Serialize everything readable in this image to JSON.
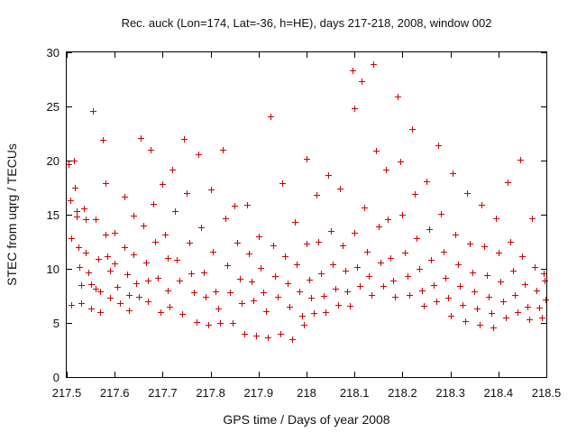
{
  "chart_data": {
    "type": "scatter",
    "title": "Rec. auck (Lon=174, Lat=-36, h=HE), days 217-218, 2008, window 002",
    "xlabel": "GPS time / Days of year 2008",
    "ylabel": "STEC from uqrg / TECUs",
    "xlim": [
      217.5,
      218.5
    ],
    "ylim": [
      0,
      30
    ],
    "xticks": [
      217.5,
      217.6,
      217.7,
      217.8,
      217.9,
      218.0,
      218.1,
      218.2,
      218.3,
      218.4,
      218.5
    ],
    "xtick_labels": [
      "217.5",
      "217.6",
      "217.7",
      "217.8",
      "217.9",
      "218",
      "218.1",
      "218.2",
      "218.3",
      "218.4",
      "218.5"
    ],
    "yticks": [
      0,
      5,
      10,
      15,
      20,
      25,
      30
    ],
    "ytick_labels": [
      "0",
      "5",
      "10",
      "15",
      "20",
      "25",
      "30"
    ],
    "grid": false,
    "marker": "+",
    "point_color": "#cc0000",
    "series": [
      {
        "values": [
          [
            217.503,
            19.7
          ],
          [
            217.507,
            16.3
          ],
          [
            217.51,
            12.8
          ],
          [
            217.51,
            6.7
          ],
          [
            217.515,
            20.0
          ],
          [
            217.516,
            17.5
          ],
          [
            217.52,
            15.3
          ],
          [
            217.52,
            14.8
          ],
          [
            217.525,
            12.0
          ],
          [
            217.527,
            10.2
          ],
          [
            217.53,
            8.5
          ],
          [
            217.53,
            6.8
          ],
          [
            217.535,
            15.6
          ],
          [
            217.54,
            14.6
          ],
          [
            217.54,
            11.5
          ],
          [
            217.545,
            9.7
          ],
          [
            217.55,
            8.6
          ],
          [
            217.55,
            6.3
          ],
          [
            217.555,
            24.6
          ],
          [
            217.56,
            14.6
          ],
          [
            217.56,
            8.2
          ],
          [
            217.565,
            10.9
          ],
          [
            217.57,
            7.9
          ],
          [
            217.57,
            6.0
          ],
          [
            217.575,
            21.9
          ],
          [
            217.58,
            17.9
          ],
          [
            217.58,
            13.2
          ],
          [
            217.585,
            11.2
          ],
          [
            217.59,
            9.8
          ],
          [
            217.59,
            7.3
          ],
          [
            217.6,
            13.3
          ],
          [
            217.6,
            10.5
          ],
          [
            217.605,
            8.3
          ],
          [
            217.61,
            6.8
          ],
          [
            217.62,
            16.7
          ],
          [
            217.62,
            12.0
          ],
          [
            217.625,
            9.5
          ],
          [
            217.63,
            7.6
          ],
          [
            217.63,
            6.2
          ],
          [
            217.64,
            14.9
          ],
          [
            217.64,
            11.3
          ],
          [
            217.645,
            8.7
          ],
          [
            217.65,
            7.4
          ],
          [
            217.655,
            22.1
          ],
          [
            217.66,
            14.0
          ],
          [
            217.665,
            10.6
          ],
          [
            217.67,
            8.9
          ],
          [
            217.67,
            7.0
          ],
          [
            217.675,
            21.0
          ],
          [
            217.68,
            16.0
          ],
          [
            217.685,
            12.5
          ],
          [
            217.69,
            9.2
          ],
          [
            217.695,
            6.0
          ],
          [
            217.7,
            17.8
          ],
          [
            217.705,
            13.2
          ],
          [
            217.71,
            11.0
          ],
          [
            217.71,
            8.0
          ],
          [
            217.715,
            6.5
          ],
          [
            217.72,
            19.2
          ],
          [
            217.725,
            15.3
          ],
          [
            217.73,
            10.8
          ],
          [
            217.735,
            8.9
          ],
          [
            217.74,
            5.8
          ],
          [
            217.745,
            22.0
          ],
          [
            217.75,
            17.0
          ],
          [
            217.755,
            12.4
          ],
          [
            217.76,
            9.6
          ],
          [
            217.765,
            7.8
          ],
          [
            217.77,
            5.1
          ],
          [
            217.775,
            20.6
          ],
          [
            217.78,
            13.8
          ],
          [
            217.785,
            9.7
          ],
          [
            217.79,
            7.4
          ],
          [
            217.795,
            4.8
          ],
          [
            217.8,
            17.3
          ],
          [
            217.805,
            11.6
          ],
          [
            217.81,
            7.9
          ],
          [
            217.815,
            6.3
          ],
          [
            217.82,
            5.0
          ],
          [
            217.825,
            21.0
          ],
          [
            217.83,
            14.7
          ],
          [
            217.835,
            10.3
          ],
          [
            217.84,
            7.8
          ],
          [
            217.845,
            5.0
          ],
          [
            217.85,
            15.8
          ],
          [
            217.855,
            12.4
          ],
          [
            217.86,
            9.1
          ],
          [
            217.865,
            6.8
          ],
          [
            217.87,
            4.0
          ],
          [
            217.875,
            15.9
          ],
          [
            217.88,
            11.4
          ],
          [
            217.885,
            8.8
          ],
          [
            217.89,
            7.1
          ],
          [
            217.895,
            3.8
          ],
          [
            217.9,
            13.0
          ],
          [
            217.905,
            10.1
          ],
          [
            217.91,
            7.8
          ],
          [
            217.915,
            6.1
          ],
          [
            217.92,
            3.7
          ],
          [
            217.925,
            24.1
          ],
          [
            217.93,
            12.2
          ],
          [
            217.935,
            9.3
          ],
          [
            217.94,
            7.4
          ],
          [
            217.945,
            4.0
          ],
          [
            217.95,
            17.9
          ],
          [
            217.955,
            11.2
          ],
          [
            217.96,
            8.7
          ],
          [
            217.965,
            6.5
          ],
          [
            217.97,
            3.5
          ],
          [
            217.975,
            14.3
          ],
          [
            217.98,
            10.4
          ],
          [
            217.985,
            7.9
          ],
          [
            217.99,
            5.7
          ],
          [
            217.995,
            4.8
          ],
          [
            218.0,
            20.2
          ],
          [
            218.0,
            12.3
          ],
          [
            218.005,
            9.0
          ],
          [
            218.01,
            7.3
          ],
          [
            218.015,
            5.9
          ],
          [
            218.02,
            16.8
          ],
          [
            218.025,
            12.5
          ],
          [
            218.03,
            9.6
          ],
          [
            218.035,
            7.5
          ],
          [
            218.04,
            6.0
          ],
          [
            218.045,
            18.7
          ],
          [
            218.05,
            13.5
          ],
          [
            218.055,
            10.4
          ],
          [
            218.06,
            8.2
          ],
          [
            218.065,
            6.7
          ],
          [
            218.07,
            17.4
          ],
          [
            218.075,
            12.2
          ],
          [
            218.08,
            9.8
          ],
          [
            218.085,
            7.9
          ],
          [
            218.09,
            6.6
          ],
          [
            218.095,
            28.3
          ],
          [
            218.1,
            24.8
          ],
          [
            218.1,
            13.3
          ],
          [
            218.105,
            10.2
          ],
          [
            218.11,
            8.4
          ],
          [
            218.115,
            27.3
          ],
          [
            218.12,
            15.7
          ],
          [
            218.125,
            11.6
          ],
          [
            218.13,
            9.3
          ],
          [
            218.135,
            7.6
          ],
          [
            218.14,
            28.9
          ],
          [
            218.145,
            20.9
          ],
          [
            218.15,
            13.9
          ],
          [
            218.155,
            10.6
          ],
          [
            218.16,
            8.4
          ],
          [
            218.165,
            19.2
          ],
          [
            218.17,
            14.6
          ],
          [
            218.175,
            11.0
          ],
          [
            218.18,
            8.9
          ],
          [
            218.185,
            7.4
          ],
          [
            218.19,
            25.9
          ],
          [
            218.195,
            19.9
          ],
          [
            218.2,
            15.0
          ],
          [
            218.205,
            11.5
          ],
          [
            218.21,
            9.3
          ],
          [
            218.215,
            7.6
          ],
          [
            218.22,
            22.9
          ],
          [
            218.225,
            16.9
          ],
          [
            218.23,
            12.8
          ],
          [
            218.235,
            10.0
          ],
          [
            218.24,
            8.0
          ],
          [
            218.245,
            6.6
          ],
          [
            218.25,
            18.1
          ],
          [
            218.255,
            13.7
          ],
          [
            218.26,
            10.8
          ],
          [
            218.265,
            8.5
          ],
          [
            218.27,
            7.0
          ],
          [
            218.275,
            21.4
          ],
          [
            218.28,
            15.1
          ],
          [
            218.285,
            11.6
          ],
          [
            218.29,
            9.2
          ],
          [
            218.295,
            7.3
          ],
          [
            218.3,
            5.7
          ],
          [
            218.305,
            18.8
          ],
          [
            218.31,
            13.2
          ],
          [
            218.315,
            10.4
          ],
          [
            218.32,
            8.4
          ],
          [
            218.325,
            6.7
          ],
          [
            218.33,
            5.2
          ],
          [
            218.335,
            17.0
          ],
          [
            218.34,
            12.3
          ],
          [
            218.345,
            9.7
          ],
          [
            218.35,
            7.9
          ],
          [
            218.355,
            6.3
          ],
          [
            218.36,
            4.8
          ],
          [
            218.365,
            15.9
          ],
          [
            218.37,
            12.1
          ],
          [
            218.375,
            9.4
          ],
          [
            218.38,
            7.4
          ],
          [
            218.385,
            5.9
          ],
          [
            218.39,
            4.6
          ],
          [
            218.395,
            14.7
          ],
          [
            218.4,
            11.5
          ],
          [
            218.405,
            8.8
          ],
          [
            218.41,
            7.0
          ],
          [
            218.415,
            5.5
          ],
          [
            218.42,
            18.0
          ],
          [
            218.425,
            12.5
          ],
          [
            218.43,
            9.8
          ],
          [
            218.435,
            7.6
          ],
          [
            218.44,
            6.0
          ],
          [
            218.445,
            20.1
          ],
          [
            218.45,
            11.2
          ],
          [
            218.455,
            8.6
          ],
          [
            218.46,
            6.5
          ],
          [
            218.465,
            5.3
          ],
          [
            218.47,
            14.7
          ],
          [
            218.475,
            10.2
          ],
          [
            218.48,
            8.0
          ],
          [
            218.485,
            6.4
          ],
          [
            218.49,
            5.5
          ],
          [
            218.495,
            9.6
          ],
          [
            218.497,
            8.9
          ],
          [
            218.499,
            7.2
          ]
        ]
      }
    ]
  }
}
